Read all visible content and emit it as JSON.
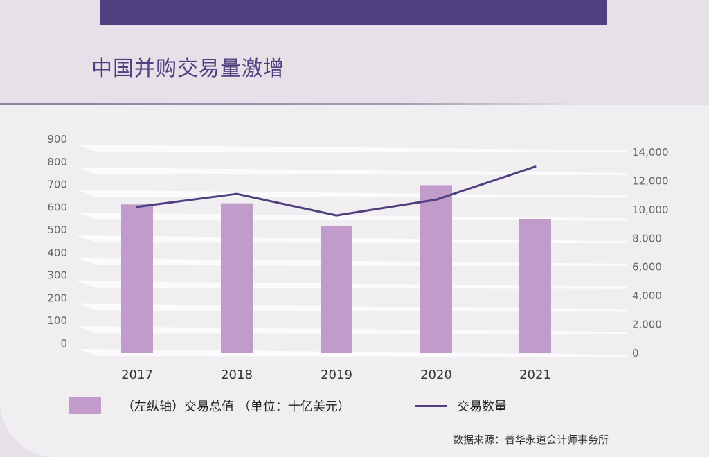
{
  "title": "中国并购交易量激增",
  "source": "数据来源：普华永道会计师事务所",
  "colors": {
    "bar": "#c19bca",
    "line": "#4e3f7e",
    "accent": "#4e3f7e"
  },
  "legend": {
    "bar_label": "（左纵轴）交易总值 （单位：十亿美元）",
    "line_label": "交易数量"
  },
  "chart_data": {
    "type": "bar",
    "title": "中国并购交易量激增",
    "categories": [
      "2017",
      "2018",
      "2019",
      "2020",
      "2021"
    ],
    "series": [
      {
        "name": "（左纵轴）交易总值 （单位：十亿美元）",
        "type": "bar",
        "axis": "left",
        "values": [
          655,
          660,
          560,
          740,
          590
        ]
      },
      {
        "name": "交易数量",
        "type": "line",
        "axis": "right",
        "values": [
          10200,
          11100,
          9600,
          10700,
          13000
        ]
      }
    ],
    "y_left": {
      "min": 0,
      "max": 900,
      "ticks": [
        "0",
        "100",
        "200",
        "300",
        "400",
        "500",
        "600",
        "700",
        "800",
        "900"
      ]
    },
    "y_right": {
      "min": 0,
      "max": 14000,
      "ticks": [
        "0",
        "2,000",
        "4,000",
        "6,000",
        "8,000",
        "10,000",
        "12,000",
        "14,000"
      ]
    },
    "grid": true,
    "legend_position": "bottom"
  }
}
